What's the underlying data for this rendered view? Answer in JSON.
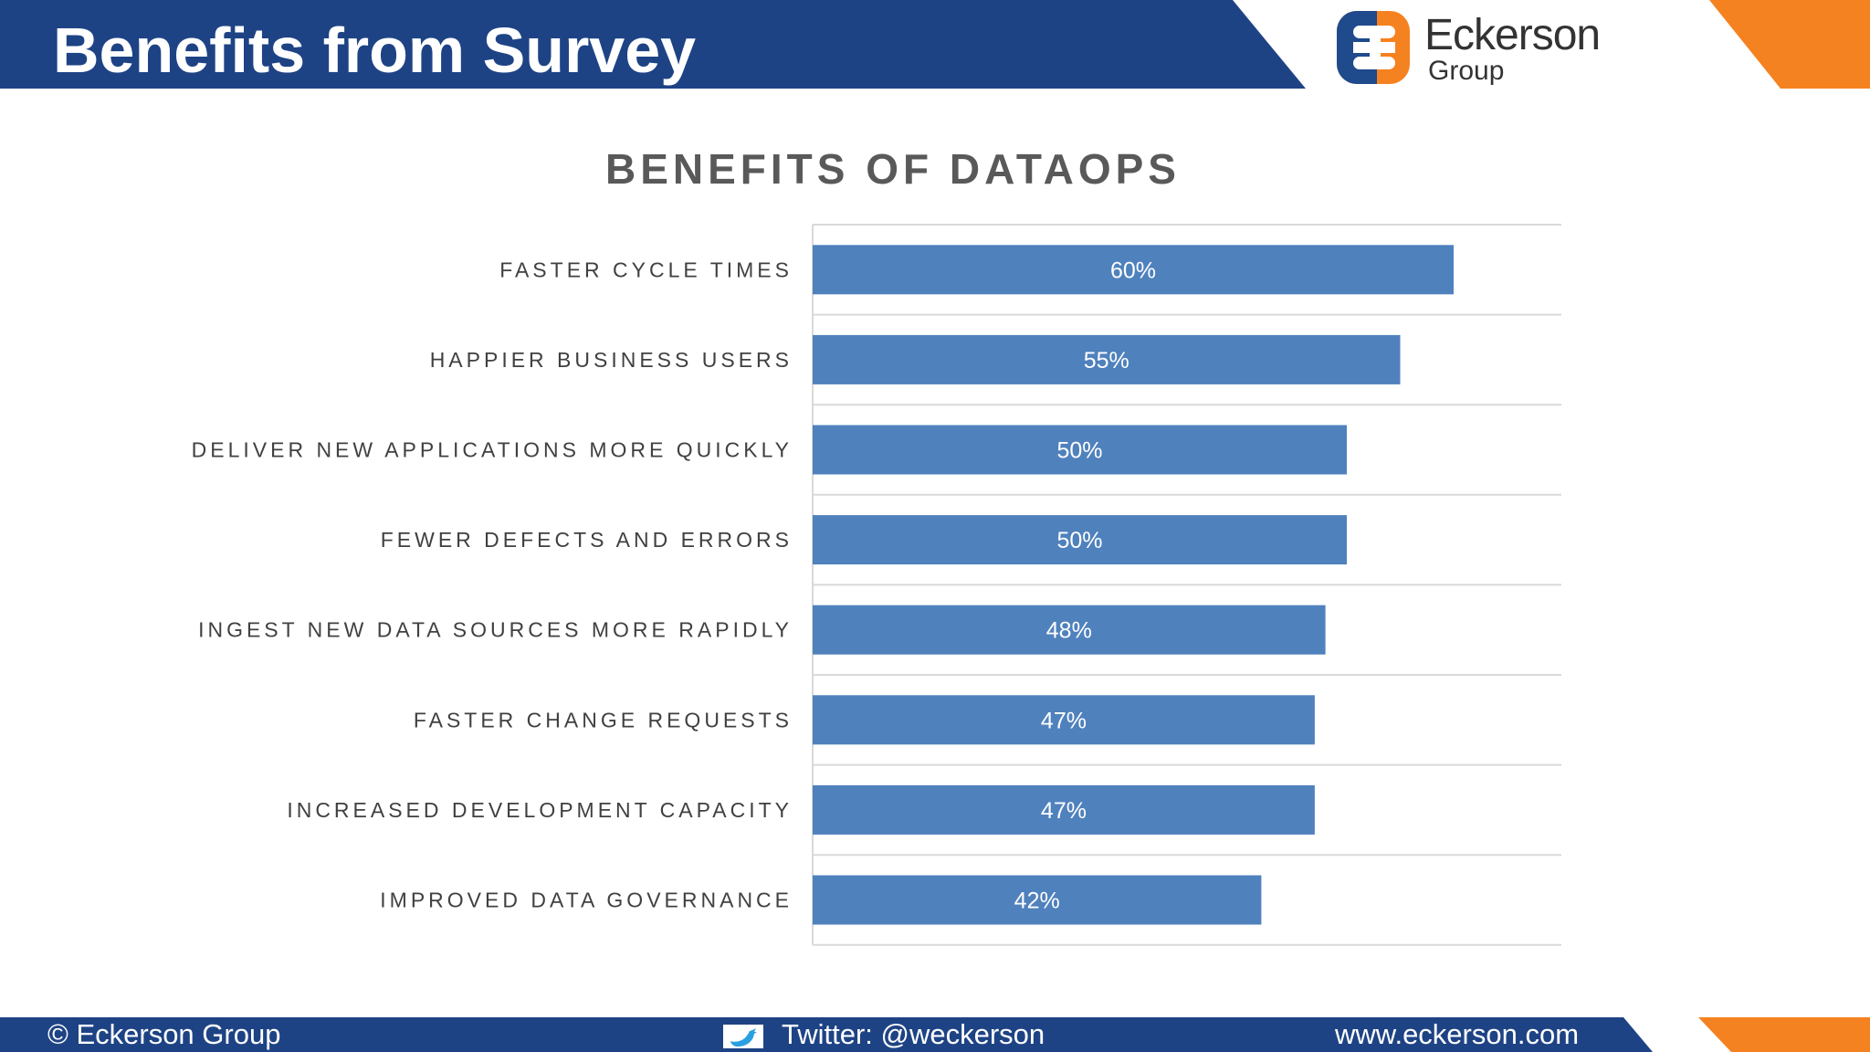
{
  "header": {
    "title": "Benefits from Survey",
    "logo": {
      "name": "Eckerson",
      "sub": "Group"
    }
  },
  "footer": {
    "copyright": "© Eckerson Group",
    "twitter": "Twitter: @weckerson",
    "website": "www.eckerson.com"
  },
  "colors": {
    "navy": "#1e4385",
    "orange": "#f58220",
    "bar": "#4f81bd",
    "logo_blue": "#1f4a8c",
    "logo_orange": "#f58220"
  },
  "icons": {
    "twitter": "twitter-bird-icon",
    "logo": "eckerson-logo-icon"
  },
  "chart_data": {
    "type": "bar",
    "orientation": "horizontal",
    "title": "BENEFITS OF DATAOPS",
    "categories": [
      "FASTER CYCLE TIMES",
      "HAPPIER BUSINESS USERS",
      "DELIVER NEW APPLICATIONS MORE QUICKLY",
      "FEWER DEFECTS AND ERRORS",
      "INGEST NEW DATA SOURCES MORE RAPIDLY",
      "FASTER CHANGE REQUESTS",
      "INCREASED DEVELOPMENT CAPACITY",
      "IMPROVED DATA GOVERNANCE"
    ],
    "values": [
      60,
      55,
      50,
      50,
      48,
      47,
      47,
      42
    ],
    "labels": [
      "60%",
      "55%",
      "50%",
      "50%",
      "48%",
      "47%",
      "47%",
      "42%"
    ],
    "xlim": [
      0,
      70
    ],
    "unit": "%",
    "grid": true,
    "legend": "none",
    "xlabel": "",
    "ylabel": ""
  }
}
